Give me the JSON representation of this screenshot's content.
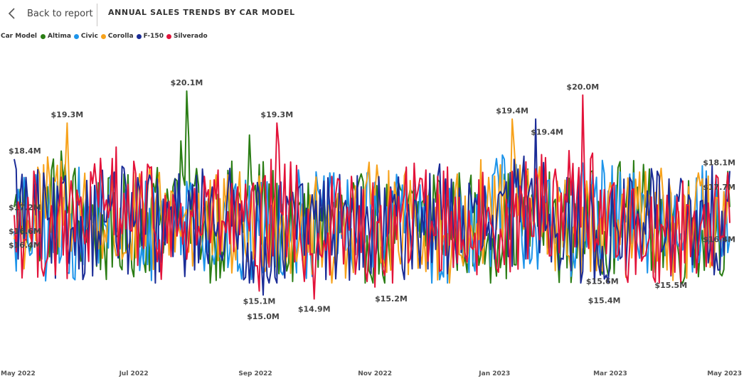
{
  "header": {
    "back_label": "Back to report",
    "title": "ANNUAL SALES TRENDS BY CAR MODEL"
  },
  "legend": {
    "title": "Car Model"
  },
  "chart_data": {
    "type": "line",
    "title": "ANNUAL SALES TRENDS BY CAR MODEL",
    "xlabel": "",
    "ylabel": "",
    "x_range": [
      "2022-05-01",
      "2023-05-01"
    ],
    "ylim": [
      14.2,
      20.6
    ],
    "grid": false,
    "legend_position": "top-left",
    "x_tick_labels": [
      "May 2022",
      "Jul 2022",
      "Sep 2022",
      "Nov 2022",
      "Jan 2023",
      "Mar 2023",
      "May 2023"
    ],
    "x_ticks": [
      "2022-05-01",
      "2022-07-01",
      "2022-09-01",
      "2022-11-01",
      "2023-01-01",
      "2023-03-01",
      "2023-05-01"
    ],
    "series": [
      {
        "name": "Altima",
        "color": "#2a7d14",
        "points": [
          [
            "2022-05-01",
            17.2
          ],
          [
            "2022-05-25",
            18.6
          ],
          [
            "2022-06-20",
            15.7
          ],
          [
            "2022-07-10",
            17.4
          ],
          [
            "2022-07-28",
            20.1
          ],
          [
            "2022-08-10",
            16.0
          ],
          [
            "2022-08-29",
            19.0
          ],
          [
            "2022-09-18",
            15.8
          ],
          [
            "2022-10-10",
            17.0
          ],
          [
            "2022-11-05",
            15.5
          ],
          [
            "2022-12-01",
            18.0
          ],
          [
            "2022-12-25",
            16.0
          ],
          [
            "2023-01-20",
            17.5
          ],
          [
            "2023-02-10",
            15.9
          ],
          [
            "2023-03-10",
            17.8
          ],
          [
            "2023-04-05",
            16.0
          ],
          [
            "2023-05-01",
            17.2
          ]
        ]
      },
      {
        "name": "Civic",
        "color": "#1d94ea",
        "points": [
          [
            "2022-05-01",
            16.6
          ],
          [
            "2022-05-24",
            15.8
          ],
          [
            "2022-06-15",
            18.0
          ],
          [
            "2022-07-05",
            16.2
          ],
          [
            "2022-07-30",
            17.8
          ],
          [
            "2022-08-25",
            15.4
          ],
          [
            "2022-09-20",
            17.0
          ],
          [
            "2022-10-20",
            15.9
          ],
          [
            "2022-11-10",
            17.6
          ],
          [
            "2022-12-05",
            15.6
          ],
          [
            "2023-01-05",
            18.5
          ],
          [
            "2023-01-30",
            16.1
          ],
          [
            "2023-02-20",
            18.0
          ],
          [
            "2023-03-15",
            16.2
          ],
          [
            "2023-04-10",
            17.5
          ],
          [
            "2023-05-01",
            16.4
          ]
        ]
      },
      {
        "name": "Corolla",
        "color": "#f7a21b",
        "points": [
          [
            "2022-05-01",
            16.4
          ],
          [
            "2022-05-28",
            19.3
          ],
          [
            "2022-06-25",
            15.9
          ],
          [
            "2022-07-20",
            17.6
          ],
          [
            "2022-08-15",
            16.1
          ],
          [
            "2022-09-10",
            17.2
          ],
          [
            "2022-10-05",
            15.7
          ],
          [
            "2022-11-01",
            17.5
          ],
          [
            "2022-12-10",
            16.0
          ],
          [
            "2023-01-10",
            19.4
          ],
          [
            "2023-02-05",
            16.2
          ],
          [
            "2023-02-25",
            15.6
          ],
          [
            "2023-03-20",
            17.0
          ],
          [
            "2023-04-12",
            16.1
          ],
          [
            "2023-05-01",
            17.7
          ]
        ]
      },
      {
        "name": "F-150",
        "color": "#1b2c97",
        "points": [
          [
            "2022-05-01",
            18.4
          ],
          [
            "2022-05-20",
            15.8
          ],
          [
            "2022-06-18",
            17.5
          ],
          [
            "2022-07-15",
            15.9
          ],
          [
            "2022-08-10",
            17.7
          ],
          [
            "2022-09-05",
            15.0
          ],
          [
            "2022-10-01",
            16.9
          ],
          [
            "2022-11-01",
            15.8
          ],
          [
            "2022-12-01",
            17.4
          ],
          [
            "2023-01-01",
            15.9
          ],
          [
            "2023-01-22",
            19.4
          ],
          [
            "2023-02-12",
            16.2
          ],
          [
            "2023-02-26",
            15.4
          ],
          [
            "2023-03-20",
            17.6
          ],
          [
            "2023-04-15",
            16.0
          ],
          [
            "2023-05-01",
            18.1
          ]
        ]
      },
      {
        "name": "Silverado",
        "color": "#e3133a",
        "points": [
          [
            "2022-05-01",
            17.0
          ],
          [
            "2022-05-26",
            16.0
          ],
          [
            "2022-06-22",
            18.7
          ],
          [
            "2022-07-18",
            16.3
          ],
          [
            "2022-08-12",
            17.4
          ],
          [
            "2022-09-03",
            15.1
          ],
          [
            "2022-09-12",
            19.3
          ],
          [
            "2022-10-01",
            14.9
          ],
          [
            "2022-10-15",
            17.1
          ],
          [
            "2022-11-01",
            15.2
          ],
          [
            "2022-11-25",
            17.9
          ],
          [
            "2022-12-20",
            16.2
          ],
          [
            "2023-01-15",
            17.5
          ],
          [
            "2023-02-15",
            20.0
          ],
          [
            "2023-03-05",
            16.0
          ],
          [
            "2023-04-01",
            15.5
          ],
          [
            "2023-04-20",
            17.3
          ],
          [
            "2023-05-01",
            16.8
          ]
        ]
      }
    ],
    "data_labels": [
      {
        "text": "$20.1M",
        "date": "2022-07-28",
        "value": 20.1,
        "pos": "above"
      },
      {
        "text": "$19.3M",
        "date": "2022-05-28",
        "value": 19.3,
        "pos": "above"
      },
      {
        "text": "$19.3M",
        "date": "2022-09-12",
        "value": 19.3,
        "pos": "above"
      },
      {
        "text": "$19.4M",
        "date": "2023-01-10",
        "value": 19.4,
        "pos": "above"
      },
      {
        "text": "$19.4M",
        "date": "2023-01-22",
        "value": 19.4,
        "pos": "left-down"
      },
      {
        "text": "$20.0M",
        "date": "2023-02-15",
        "value": 20.0,
        "pos": "above"
      },
      {
        "text": "$18.4M",
        "date": "2022-05-01",
        "value": 18.4,
        "pos": "right-up"
      },
      {
        "text": "$18.1M",
        "date": "2023-05-01",
        "value": 18.1,
        "pos": "left-up"
      },
      {
        "text": "$17.7M",
        "date": "2023-05-01",
        "value": 17.7,
        "pos": "left"
      },
      {
        "text": "$17.2M",
        "date": "2022-05-01",
        "value": 17.2,
        "pos": "right"
      },
      {
        "text": "$16.6M",
        "date": "2022-05-01",
        "value": 16.6,
        "pos": "right"
      },
      {
        "text": "$16.4M",
        "date": "2022-05-01",
        "value": 16.4,
        "pos": "right-down"
      },
      {
        "text": "$16.4M",
        "date": "2023-05-01",
        "value": 16.4,
        "pos": "left"
      },
      {
        "text": "$15.1M",
        "date": "2022-09-03",
        "value": 15.1,
        "pos": "below"
      },
      {
        "text": "$15.0M",
        "date": "2022-09-05",
        "value": 15.0,
        "pos": "below2"
      },
      {
        "text": "$14.9M",
        "date": "2022-10-01",
        "value": 14.9,
        "pos": "below"
      },
      {
        "text": "$15.2M",
        "date": "2022-11-01",
        "value": 15.2,
        "pos": "below-left"
      },
      {
        "text": "$15.6M",
        "date": "2023-02-25",
        "value": 15.6,
        "pos": "below"
      },
      {
        "text": "$15.4M",
        "date": "2023-02-26",
        "value": 15.4,
        "pos": "below2"
      },
      {
        "text": "$15.5M",
        "date": "2023-04-01",
        "value": 15.5,
        "pos": "below"
      }
    ]
  }
}
